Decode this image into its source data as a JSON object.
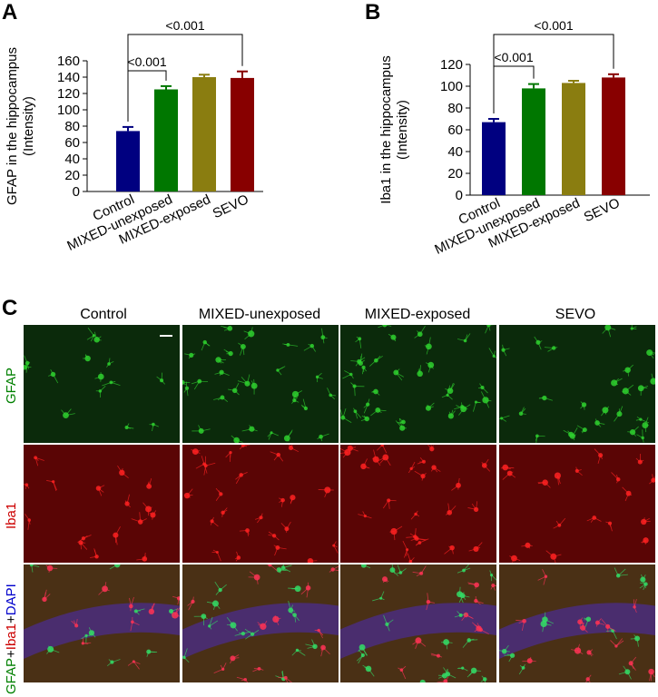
{
  "panels": {
    "a": "A",
    "b": "B",
    "c": "C"
  },
  "chart_data": [
    {
      "type": "bar",
      "panel": "A",
      "categories": [
        "Control",
        "MIXED-unexposed",
        "MIXED-exposed",
        "SEVO"
      ],
      "values": [
        74,
        125,
        140,
        139
      ],
      "errors": [
        5,
        4,
        3,
        8
      ],
      "colors": [
        "#000080",
        "#007700",
        "#8a7d10",
        "#880000"
      ],
      "ylabel_line1": "GFAP in the hippocampus",
      "ylabel_line2": "(Intensity)",
      "ylim": [
        0,
        160
      ],
      "yticks": [
        0,
        20,
        40,
        60,
        80,
        100,
        120,
        140,
        160
      ],
      "annotations": [
        {
          "from": "Control",
          "to": "MIXED-unexposed",
          "label": "<0.001"
        },
        {
          "from": "Control",
          "to": "SEVO",
          "label": "<0.001"
        }
      ]
    },
    {
      "type": "bar",
      "panel": "B",
      "categories": [
        "Control",
        "MIXED-unexposed",
        "MIXED-exposed",
        "SEVO"
      ],
      "values": [
        67,
        98,
        103,
        108
      ],
      "errors": [
        3,
        4,
        2,
        3
      ],
      "colors": [
        "#000080",
        "#007700",
        "#8a7d10",
        "#880000"
      ],
      "ylabel_line1": "Iba1 in the hippocampus",
      "ylabel_line2": "(Intensity)",
      "ylim": [
        0,
        120
      ],
      "yticks": [
        0,
        20,
        40,
        60,
        80,
        100,
        120
      ],
      "annotations": [
        {
          "from": "Control",
          "to": "MIXED-unexposed",
          "label": "<0.001"
        },
        {
          "from": "Control",
          "to": "SEVO",
          "label": "<0.001"
        }
      ]
    }
  ],
  "micrographs": {
    "columns": [
      "Control",
      "MIXED-unexposed",
      "MIXED-exposed",
      "SEVO"
    ],
    "rows": [
      {
        "label": "GFAP",
        "color": "#008000"
      },
      {
        "label": "Iba1",
        "color": "#cc0000"
      },
      {
        "label_parts": [
          "GFAP",
          "+",
          "Iba1",
          "+",
          "DAPI"
        ],
        "colors": [
          "#008000",
          "#000000",
          "#cc0000",
          "#000000",
          "#0000cc"
        ]
      }
    ]
  }
}
